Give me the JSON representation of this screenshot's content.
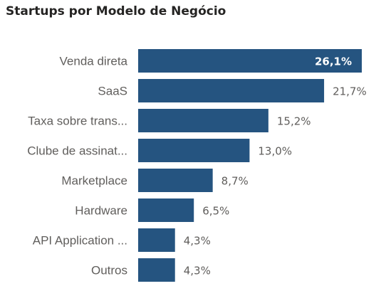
{
  "colors": {
    "bar": "#255480",
    "label": "#605e5c",
    "inside_label": "#ffffff"
  },
  "chart_data": {
    "type": "bar",
    "orientation": "horizontal",
    "title": "Startups por Modelo de Negócio",
    "categories": [
      "Venda direta",
      "SaaS",
      "Taxa sobre trans...",
      "Clube de assinat...",
      "Marketplace",
      "Hardware",
      "API Application ...",
      "Outros"
    ],
    "values": [
      26.1,
      21.7,
      15.2,
      13.0,
      8.7,
      6.5,
      4.3,
      4.3
    ],
    "value_labels": [
      "26,1%",
      "21,7%",
      "15,2%",
      "13,0%",
      "8,7%",
      "6,5%",
      "4,3%",
      "4,3%"
    ],
    "xlim": [
      0,
      26.1
    ],
    "grid": false,
    "legend": "none"
  }
}
